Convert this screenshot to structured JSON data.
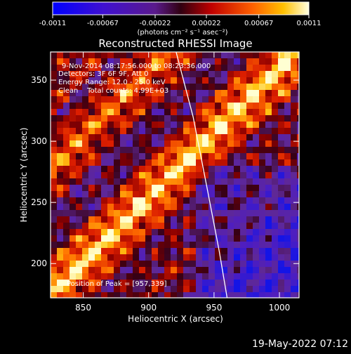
{
  "colorbar": {
    "tick_labels": [
      "-0.0011",
      "-0.00067",
      "-0.00022",
      "0.00022",
      "0.00067",
      "0.0011"
    ],
    "unit_label": "(photons cm⁻² s⁻¹ asec⁻²)",
    "range": [
      -0.0011,
      0.0011
    ]
  },
  "chart_data": {
    "type": "heatmap",
    "title": "Reconstructed RHESSI Image",
    "xlabel": "Heliocentric X (arcsec)",
    "ylabel": "Heliocentric Y (arcsec)",
    "xlim": [
      825,
      1015
    ],
    "ylim": [
      172,
      373
    ],
    "x_ticks": [
      850,
      900,
      950,
      1000
    ],
    "y_ticks": [
      200,
      250,
      300,
      350
    ],
    "annotations": [
      "9-Nov-2014 08:17:56.000 to 08:23:36.000",
      "Detectors: 3F 6F 9F, Att 0",
      "Energy Range: 12.0 - 25.0 keV",
      "Clean    Total counts: 4.99E+03"
    ],
    "peak_label": "Position of Peak = [957,339]",
    "peak_position": [
      957,
      339
    ],
    "limb_curve": [
      [
        921,
        373
      ],
      [
        934,
        320
      ],
      [
        945,
        260
      ],
      [
        954,
        210
      ],
      [
        960,
        172
      ]
    ]
  },
  "footer": {
    "timestamp": "19-May-2022 07:12"
  }
}
